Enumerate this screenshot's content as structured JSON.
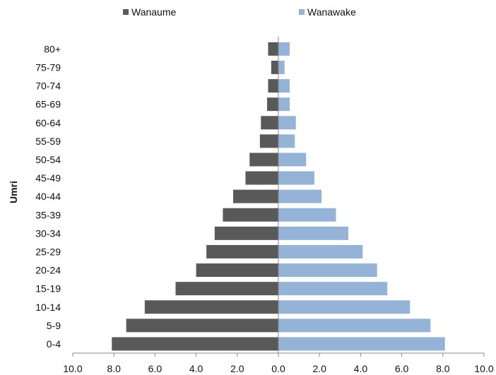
{
  "chart_data": {
    "type": "bar",
    "orientation": "horizontal",
    "title": "",
    "xlabel": "",
    "ylabel": "Umri",
    "categories": [
      "0-4",
      "5-9",
      "10-14",
      "15-19",
      "20-24",
      "25-29",
      "30-34",
      "35-39",
      "40-44",
      "45-49",
      "50-54",
      "55-59",
      "60-64",
      "65-69",
      "70-74",
      "75-79",
      "80+"
    ],
    "series": [
      {
        "name": "Wanaume",
        "color": "#595959",
        "direction": "left",
        "values": [
          8.1,
          7.4,
          6.5,
          5.0,
          4.0,
          3.5,
          3.1,
          2.7,
          2.2,
          1.6,
          1.4,
          0.9,
          0.85,
          0.55,
          0.5,
          0.35,
          0.5
        ]
      },
      {
        "name": "Wanawake",
        "color": "#95b3d7",
        "direction": "right",
        "values": [
          8.1,
          7.4,
          6.4,
          5.3,
          4.8,
          4.1,
          3.4,
          2.8,
          2.1,
          1.75,
          1.35,
          0.8,
          0.85,
          0.55,
          0.55,
          0.3,
          0.55
        ]
      }
    ],
    "x_ticks": [
      "10.0",
      "8.0",
      "6.0",
      "4.0",
      "2.0",
      "0.0",
      "2.0",
      "4.0",
      "6.0",
      "8.0",
      "10.0"
    ],
    "xlim": [
      -10,
      10
    ],
    "grid": false,
    "legend_position": "top"
  }
}
